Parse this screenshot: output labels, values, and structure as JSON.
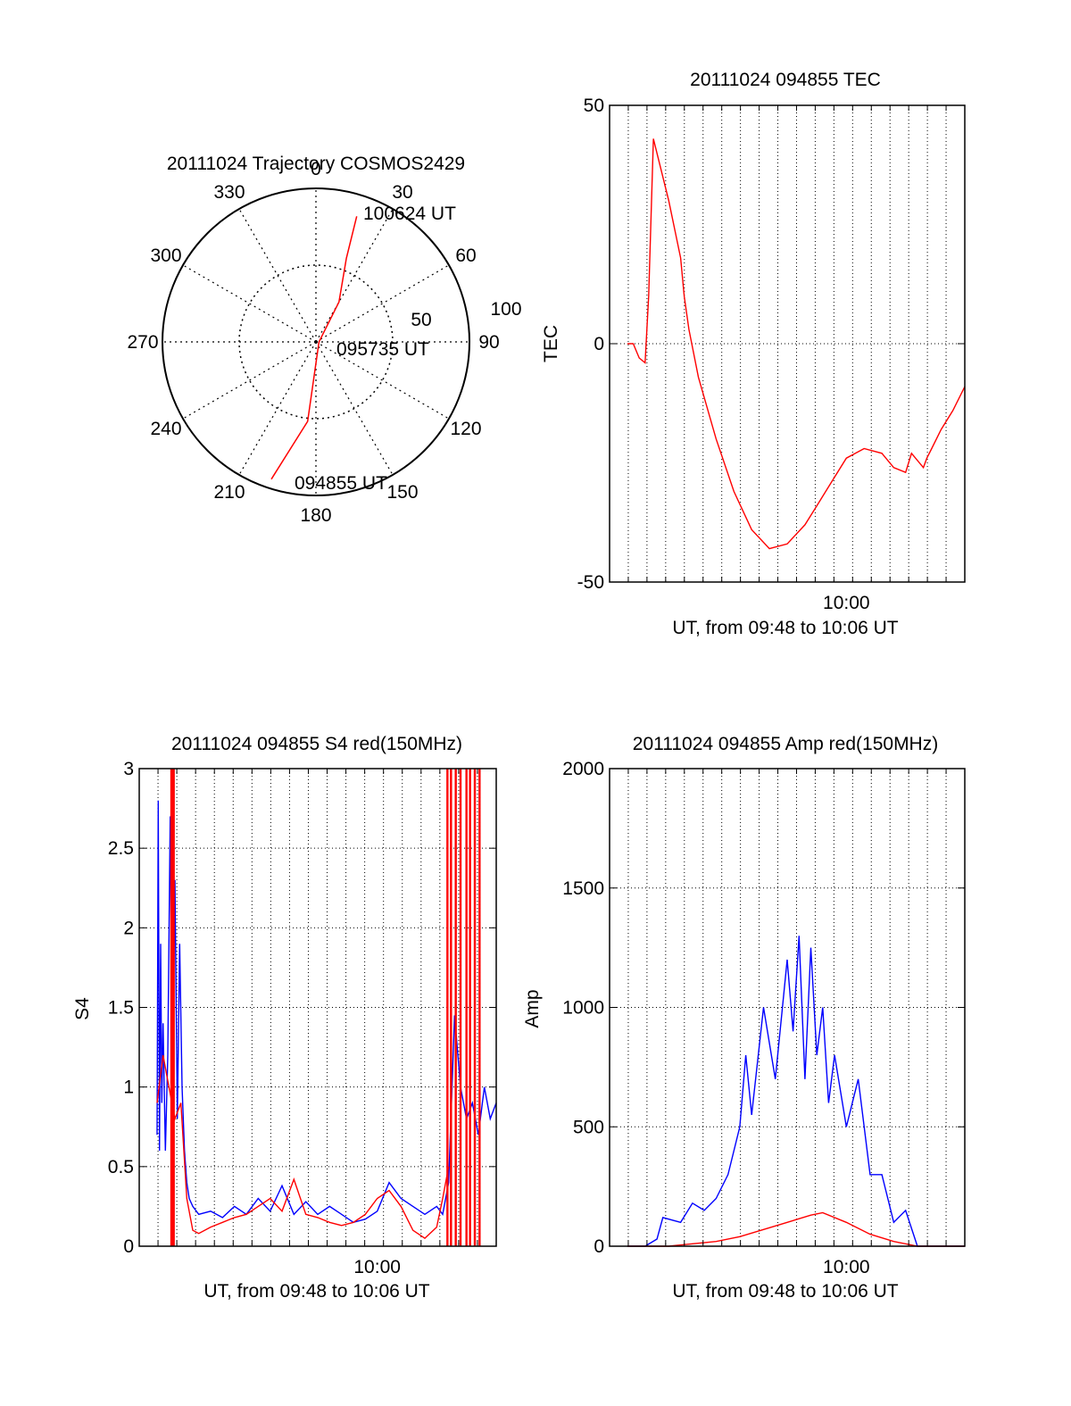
{
  "colors": {
    "red": "#ff0000",
    "blue": "#0000ff",
    "axis": "#000000"
  },
  "chart_data": [
    {
      "id": "trajectory",
      "type": "polar",
      "title": "20111024 Trajectory COSMOS2429",
      "angle_labels": [
        "0",
        "30",
        "60",
        "90",
        "120",
        "150",
        "180",
        "210",
        "240",
        "270",
        "300",
        "330"
      ],
      "radius_labels": [
        "50",
        "100"
      ],
      "radius_max": 100,
      "grid": true,
      "track": {
        "points": [
          {
            "az": 198,
            "el_dist": 94
          },
          {
            "az": 186,
            "el_dist": 52
          },
          {
            "az": 90,
            "el_dist": 2
          },
          {
            "az": 30,
            "el_dist": 30
          },
          {
            "az": 20,
            "el_dist": 58
          },
          {
            "az": 18,
            "el_dist": 86
          }
        ],
        "labels": [
          "094855 UT",
          "095735 UT",
          "100624 UT"
        ]
      }
    },
    {
      "id": "tec",
      "type": "line",
      "title": "20111024 094855 TEC",
      "xlabel": "UT, from 09:48 to 10:06 UT",
      "ylabel": "TEC",
      "xlim": [
        9.8,
        10.1
      ],
      "xtick_labels": [
        "10:00"
      ],
      "xticks": [
        10.0
      ],
      "ylim": [
        -50,
        50
      ],
      "yticks": [
        -50,
        0,
        50
      ],
      "grid": true,
      "series": [
        {
          "color": "red",
          "x": [
            9.815,
            9.82,
            9.825,
            9.83,
            9.833,
            9.837,
            9.842,
            9.85,
            9.86,
            9.863,
            9.867,
            9.875,
            9.89,
            9.905,
            9.92,
            9.935,
            9.95,
            9.965,
            9.975,
            9.985,
            10.0,
            10.015,
            10.03,
            10.04,
            10.05,
            10.055,
            10.065,
            10.068,
            10.072,
            10.08,
            10.09,
            10.1
          ],
          "y": [
            0,
            0,
            -3,
            -4,
            10,
            43,
            38,
            30,
            18,
            10,
            3,
            -7,
            -20,
            -31,
            -39,
            -43,
            -42,
            -38,
            -34,
            -30,
            -24,
            -22,
            -23,
            -26,
            -27,
            -23,
            -26,
            -24,
            -22,
            -18,
            -14,
            -9
          ]
        }
      ]
    },
    {
      "id": "s4",
      "type": "line",
      "title": "20111024 094855 S4 red(150MHz)",
      "xlabel": "UT, from 09:48 to 10:06 UT",
      "ylabel": "S4",
      "xlim": [
        9.8,
        10.1
      ],
      "xtick_labels": [
        "10:00"
      ],
      "xticks": [
        10.0
      ],
      "ylim": [
        0,
        3
      ],
      "yticks": [
        0,
        0.5,
        1,
        1.5,
        2,
        2.5,
        3
      ],
      "ytick_labels": [
        "0",
        "0.5",
        "1",
        "1.5",
        "2",
        "2.5",
        "3"
      ],
      "grid": true,
      "series": [
        {
          "color": "blue",
          "x": [
            9.815,
            9.816,
            9.817,
            9.818,
            9.819,
            9.82,
            9.822,
            9.824,
            9.826,
            9.828,
            9.83,
            9.832,
            9.834,
            9.836,
            9.838,
            9.84,
            9.842,
            9.845,
            9.85,
            9.86,
            9.87,
            9.88,
            9.89,
            9.9,
            9.91,
            9.92,
            9.93,
            9.94,
            9.95,
            9.96,
            9.97,
            9.98,
            9.99,
            10.0,
            10.01,
            10.02,
            10.03,
            10.04,
            10.05,
            10.055,
            10.06,
            10.065,
            10.07,
            10.075,
            10.08,
            10.085,
            10.09,
            10.095,
            10.1
          ],
          "y": [
            0.7,
            2.8,
            0.6,
            1.9,
            0.9,
            1.4,
            0.6,
            1.2,
            2.7,
            1.0,
            2.3,
            0.8,
            1.9,
            1.0,
            0.6,
            0.4,
            0.3,
            0.25,
            0.2,
            0.22,
            0.18,
            0.25,
            0.2,
            0.3,
            0.22,
            0.38,
            0.2,
            0.28,
            0.2,
            0.25,
            0.2,
            0.15,
            0.17,
            0.22,
            0.4,
            0.3,
            0.25,
            0.2,
            0.25,
            0.2,
            0.4,
            1.45,
            1.0,
            0.8,
            0.9,
            0.7,
            1.0,
            0.8,
            0.9
          ]
        },
        {
          "color": "red",
          "x": [
            9.815,
            9.82,
            9.825,
            9.83,
            9.835,
            9.84,
            9.845,
            9.85,
            9.86,
            9.87,
            9.88,
            9.89,
            9.9,
            9.91,
            9.92,
            9.93,
            9.94,
            9.95,
            9.96,
            9.97,
            9.98,
            9.99,
            10.0,
            10.01,
            10.02,
            10.03,
            10.04,
            10.05,
            10.055,
            10.06
          ],
          "y": [
            0.9,
            1.2,
            1.0,
            0.8,
            0.9,
            0.3,
            0.1,
            0.08,
            0.12,
            0.15,
            0.18,
            0.2,
            0.25,
            0.3,
            0.22,
            0.42,
            0.2,
            0.18,
            0.15,
            0.13,
            0.15,
            0.2,
            0.3,
            0.35,
            0.25,
            0.1,
            0.05,
            0.12,
            0.3,
            0.5
          ]
        }
      ],
      "red_spikes_x": [
        9.827,
        9.828,
        9.829,
        10.059,
        10.062,
        10.066,
        10.07,
        10.075,
        10.078,
        10.082,
        10.086
      ]
    },
    {
      "id": "amp",
      "type": "line",
      "title": "20111024 094855 Amp red(150MHz)",
      "xlabel": "UT, from 09:48 to 10:06 UT",
      "ylabel": "Amp",
      "xlim": [
        9.8,
        10.1
      ],
      "xtick_labels": [
        "10:00"
      ],
      "xticks": [
        10.0
      ],
      "ylim": [
        0,
        2000
      ],
      "yticks": [
        0,
        500,
        1000,
        1500,
        2000
      ],
      "grid": true,
      "series": [
        {
          "color": "blue",
          "x": [
            9.815,
            9.83,
            9.84,
            9.845,
            9.86,
            9.87,
            9.88,
            9.89,
            9.9,
            9.91,
            9.915,
            9.92,
            9.93,
            9.94,
            9.95,
            9.955,
            9.96,
            9.965,
            9.97,
            9.975,
            9.98,
            9.985,
            9.99,
            10.0,
            10.01,
            10.02,
            10.03,
            10.04,
            10.05,
            10.06,
            10.07,
            10.1
          ],
          "y": [
            0,
            0,
            30,
            120,
            100,
            180,
            150,
            200,
            300,
            500,
            800,
            550,
            1000,
            700,
            1200,
            900,
            1300,
            700,
            1250,
            800,
            1000,
            600,
            800,
            500,
            700,
            300,
            300,
            100,
            150,
            0,
            0,
            0
          ]
        },
        {
          "color": "red",
          "x": [
            9.815,
            9.85,
            9.87,
            9.89,
            9.91,
            9.93,
            9.95,
            9.97,
            9.98,
            10.0,
            10.02,
            10.04,
            10.06,
            10.1
          ],
          "y": [
            0,
            0,
            10,
            20,
            40,
            70,
            100,
            130,
            140,
            100,
            50,
            20,
            0,
            0
          ]
        }
      ]
    }
  ]
}
